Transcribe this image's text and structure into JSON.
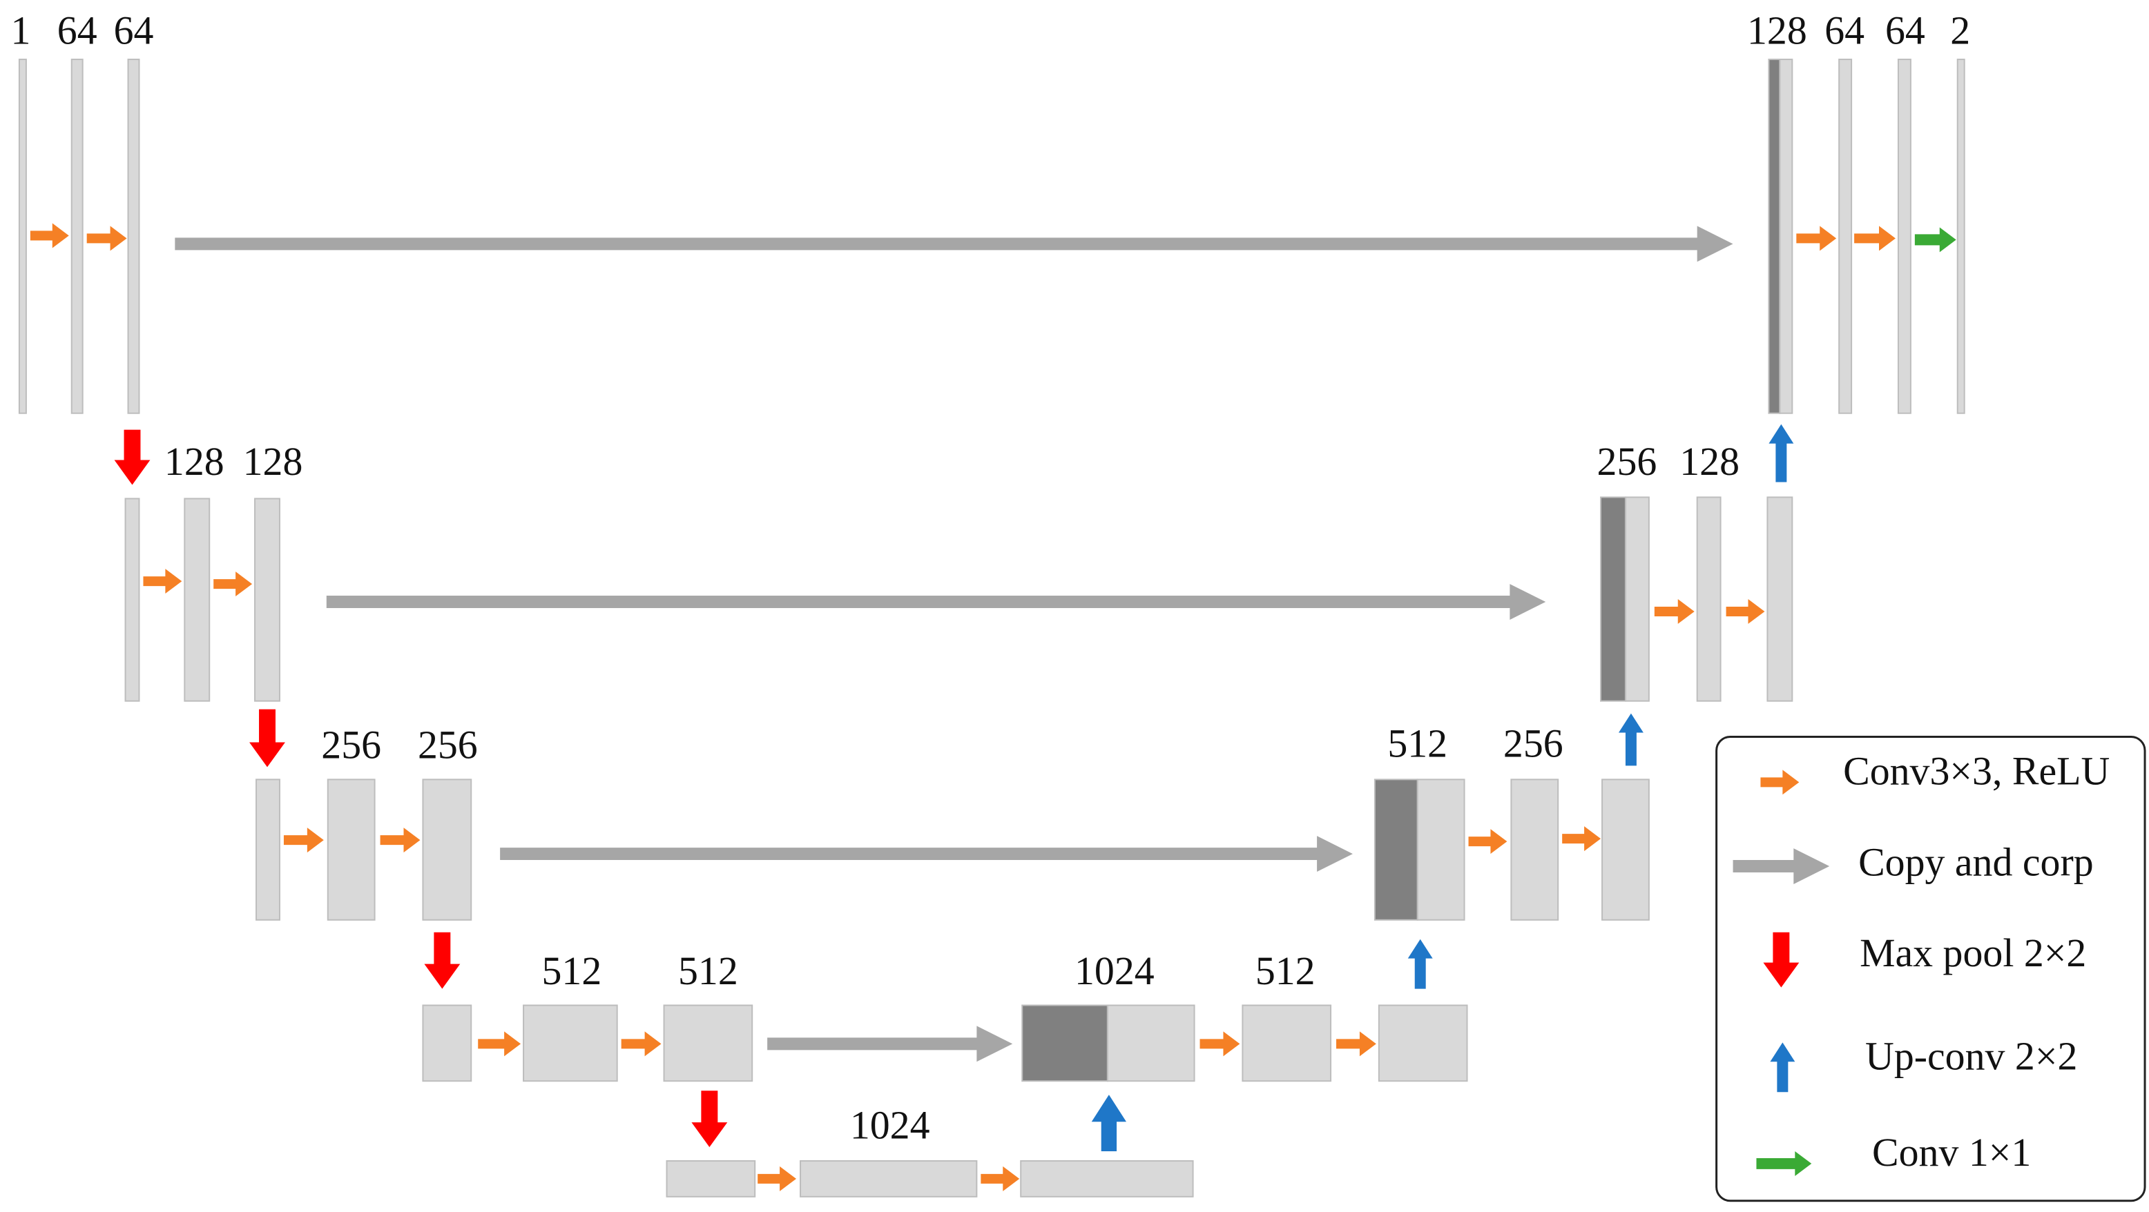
{
  "levels": [
    {
      "encoder": [
        "1",
        "64",
        "64"
      ],
      "decoder": [
        "128",
        "64",
        "64",
        "2"
      ]
    },
    {
      "encoder": [
        "128",
        "128"
      ],
      "decoder": [
        "256",
        "128"
      ]
    },
    {
      "encoder": [
        "256",
        "256"
      ],
      "decoder": [
        "512",
        "256"
      ]
    },
    {
      "encoder": [
        "512",
        "512"
      ],
      "decoder": [
        "1024",
        "512"
      ]
    },
    {
      "bottleneck": [
        "1024"
      ]
    }
  ],
  "legend": [
    "Conv3×3, ReLU",
    "Copy and corp",
    "Max pool 2×2",
    "Up-conv 2×2",
    "Conv 1×1"
  ]
}
